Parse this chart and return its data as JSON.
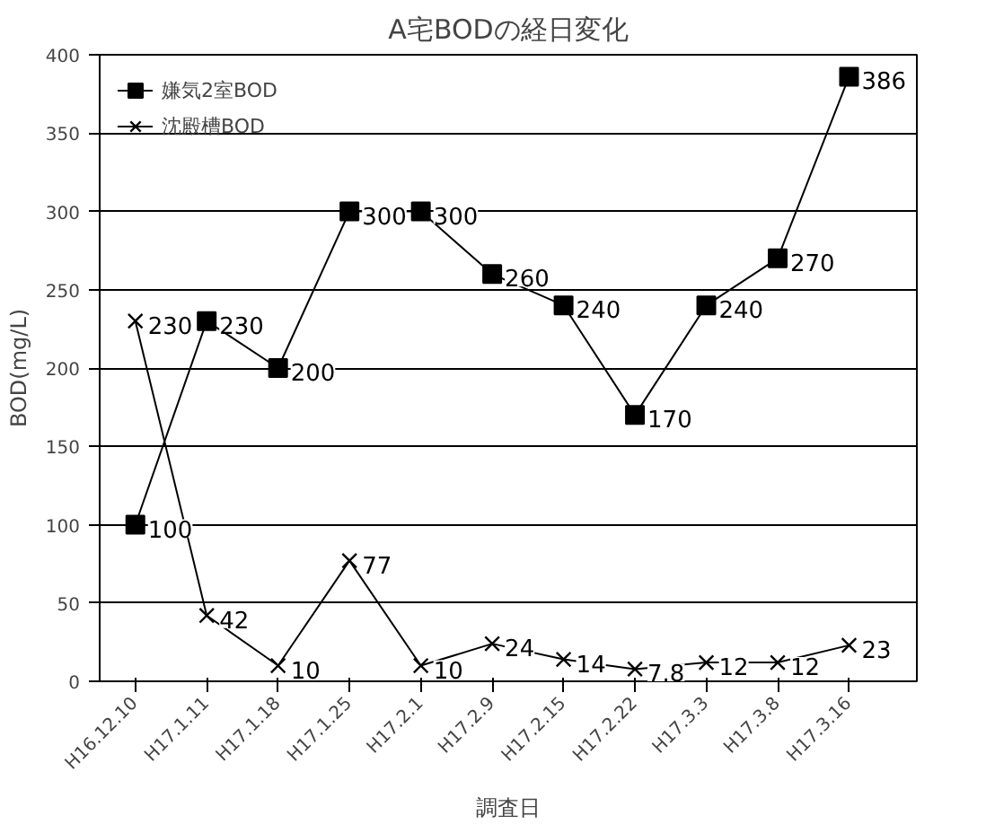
{
  "chart_data": {
    "type": "line",
    "title": "A宅BODの経日変化",
    "xlabel": "調査日",
    "ylabel": "BOD(mg/L)",
    "categories": [
      "H16.12.10",
      "H17.1.11",
      "H17.1.18",
      "H17.1.25",
      "H17.2.1",
      "H17.2.9",
      "H17.2.15",
      "H17.2.22",
      "H17.3.3",
      "H17.3.8",
      "H17.3.16"
    ],
    "series": [
      {
        "name": "嫌気2室BOD",
        "color": "#000000",
        "marker": "square",
        "values": [
          100,
          230,
          200,
          300,
          300,
          260,
          240,
          170,
          240,
          270,
          386
        ]
      },
      {
        "name": "沈殿槽BOD",
        "color": "#000000",
        "marker": "cross",
        "values": [
          230,
          42,
          10,
          77,
          10,
          24,
          14,
          7.8,
          12,
          12,
          23
        ]
      }
    ],
    "ylim": [
      0,
      400
    ],
    "yticks": [
      0,
      50,
      100,
      150,
      200,
      250,
      300,
      350,
      400
    ],
    "grid": "y",
    "legend": "top left",
    "data_labels": true
  }
}
